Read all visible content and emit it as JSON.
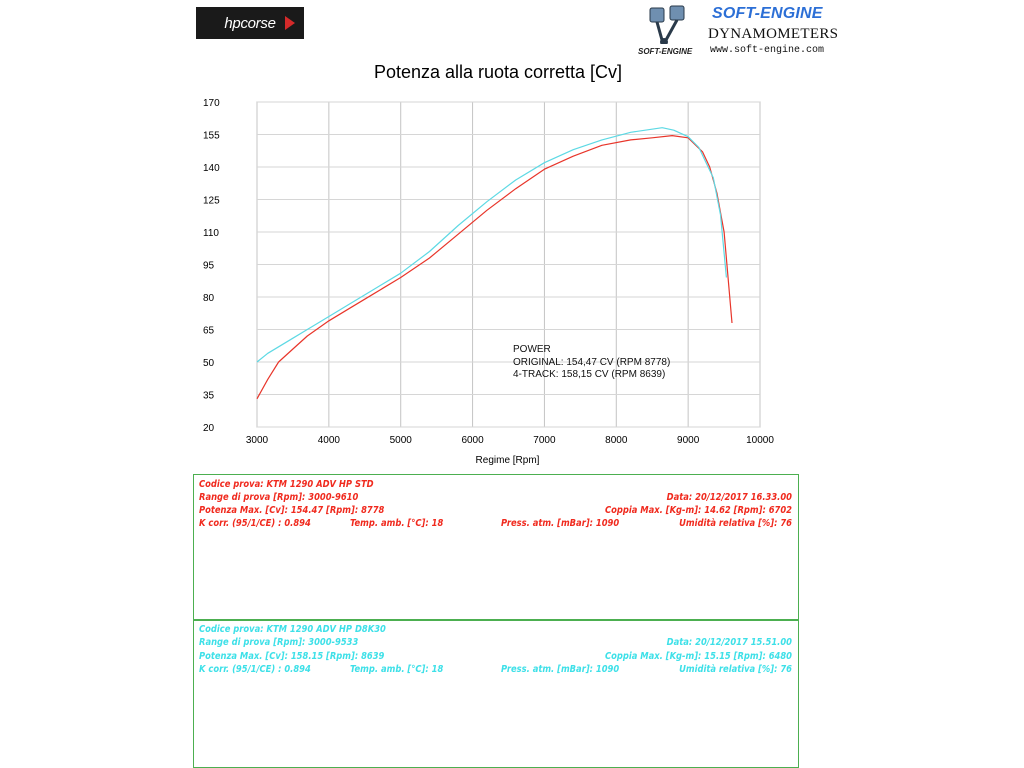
{
  "logos": {
    "hp": "hpcorse",
    "se_brand": "SOFT-ENGINE",
    "se_subtitle": "DYNAMOMETERS",
    "se_url": "www.soft-engine.com",
    "se_badge": "SOFT-ENGINE"
  },
  "chart_data": {
    "type": "line",
    "title": "Potenza alla ruota corretta [Cv]",
    "xlabel": "Regime [Rpm]",
    "ylabel": "",
    "xlim": [
      3000,
      10000
    ],
    "ylim": [
      20,
      170
    ],
    "xticks": [
      "3000",
      "4000",
      "5000",
      "6000",
      "7000",
      "8000",
      "9000",
      "10000"
    ],
    "yticks": [
      "20",
      "35",
      "50",
      "65",
      "80",
      "95",
      "110",
      "125",
      "140",
      "155",
      "170"
    ],
    "grid": true,
    "series": [
      {
        "name": "ORIGINAL",
        "color": "#e8352a",
        "x": [
          3000,
          3150,
          3300,
          3500,
          3700,
          4000,
          4300,
          4600,
          5000,
          5400,
          5800,
          6200,
          6600,
          7000,
          7400,
          7800,
          8200,
          8500,
          8778,
          9000,
          9200,
          9300,
          9400,
          9500,
          9610
        ],
        "y": [
          33,
          42,
          50,
          56,
          62,
          69,
          75,
          81,
          89,
          98,
          109,
          120,
          130,
          139,
          145,
          150,
          152.5,
          153.5,
          154.47,
          153.5,
          147,
          140,
          128,
          110,
          68
        ]
      },
      {
        "name": "4-TRACK",
        "color": "#5dd9e4",
        "x": [
          3000,
          3150,
          3300,
          3500,
          3700,
          4000,
          4300,
          4600,
          5000,
          5400,
          5800,
          6200,
          6600,
          7000,
          7400,
          7800,
          8200,
          8639,
          8800,
          9000,
          9150,
          9250,
          9350,
          9450,
          9533
        ],
        "y": [
          50,
          54,
          57,
          61,
          65,
          71,
          77,
          83,
          91,
          101,
          113,
          124,
          134,
          142,
          148,
          152.5,
          156,
          158.15,
          157,
          154,
          149,
          142,
          135,
          118,
          89
        ]
      }
    ],
    "annotations": [
      "POWER",
      "ORIGINAL: 154,47 CV (RPM 8778)",
      "4-TRACK: 158,15 CV (RPM 8639)"
    ]
  },
  "tests": [
    {
      "color": "#f02a1e",
      "codice": "Codice prova: KTM 1290 ADV HP STD",
      "range": "Range di prova [Rpm]: 3000-9610",
      "data": "Data: 20/12/2017  16.33.00",
      "potenza": "Potenza Max. [Cv]: 154.47  [Rpm]: 8778",
      "coppia": "Coppia Max. [Kg-m]: 14.62  [Rpm]: 6702",
      "kcorr": "K corr. (95/1/CE) : 0.894",
      "temp": "Temp. amb. [°C]: 18",
      "press": "Press. atm. [mBar]: 1090",
      "umid": "Umidità relativa [%]: 76"
    },
    {
      "color": "#3de0e8",
      "codice": "Codice prova: KTM 1290 ADV HP D8K30",
      "range": "Range di prova [Rpm]: 3000-9533",
      "data": "Data: 20/12/2017  15.51.00",
      "potenza": "Potenza Max. [Cv]: 158.15  [Rpm]: 8639",
      "coppia": "Coppia Max. [Kg-m]: 15.15  [Rpm]: 6480",
      "kcorr": "K corr. (95/1/CE) : 0.894",
      "temp": "Temp. amb. [°C]: 18",
      "press": "Press. atm. [mBar]: 1090",
      "umid": "Umidità relativa [%]: 76"
    }
  ]
}
